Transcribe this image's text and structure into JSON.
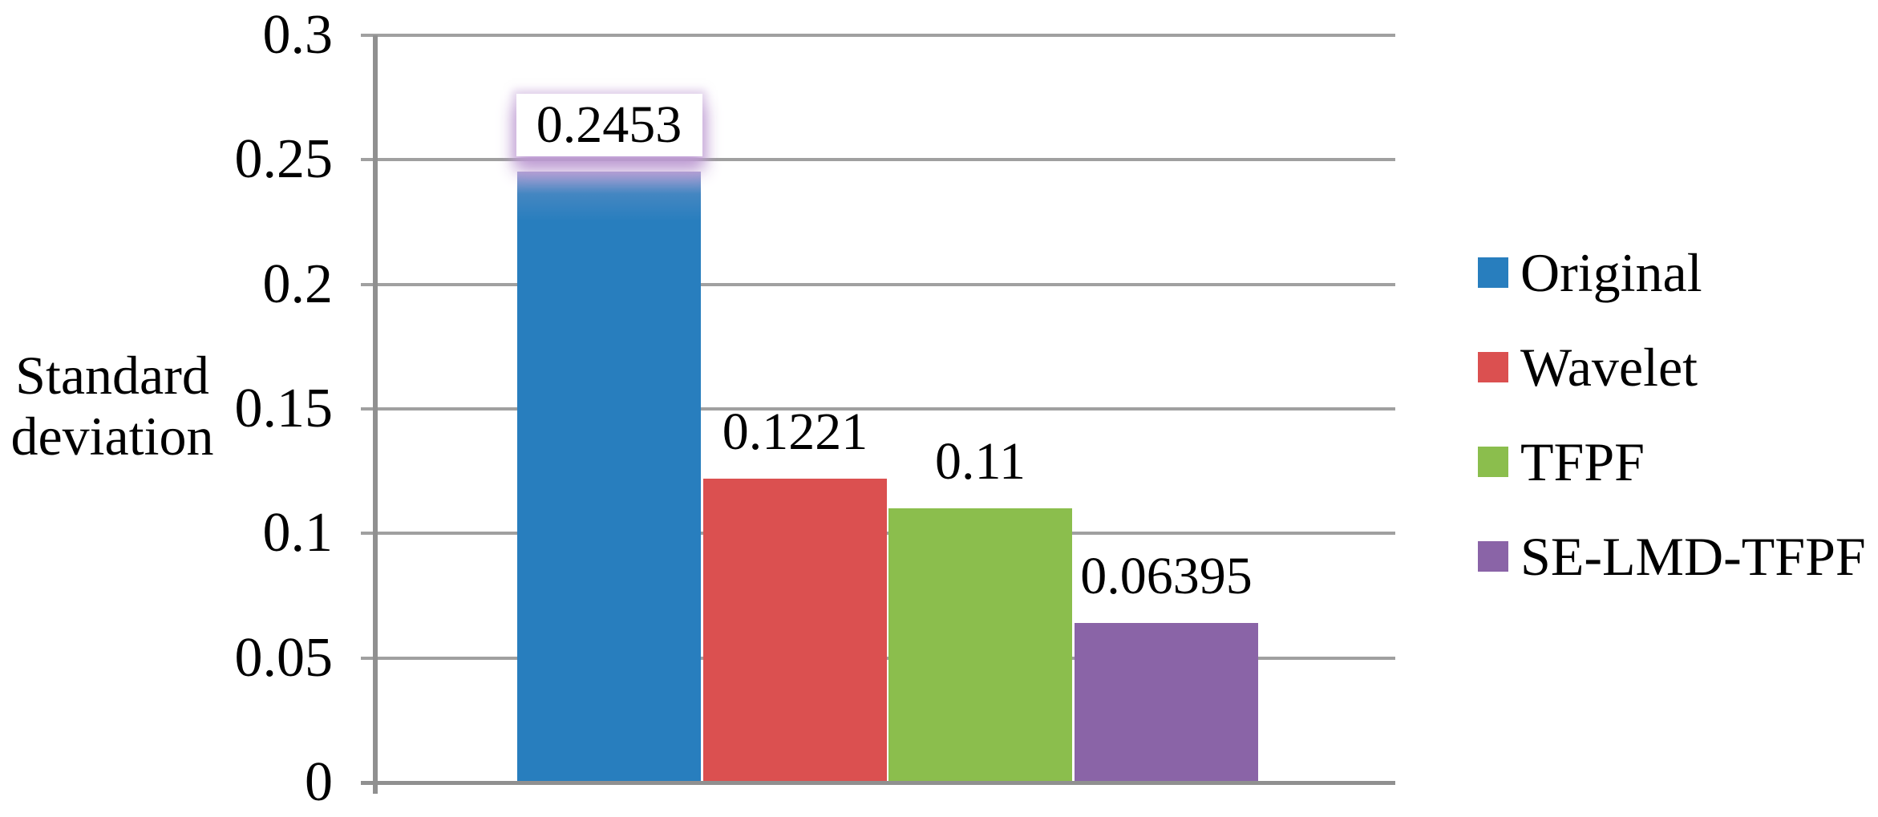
{
  "chart_data": {
    "type": "bar",
    "title": "",
    "xlabel": "",
    "ylabel": "Standard deviation",
    "ylabel_lines": [
      "Standard",
      "deviation"
    ],
    "categories": [
      "Original",
      "Wavelet",
      "TFPF",
      "SE-LMD-TFPF"
    ],
    "values": [
      0.2453,
      0.1221,
      0.11,
      0.06395
    ],
    "data_labels": [
      "0.2453",
      "0.1221",
      "0.11",
      "0.06395"
    ],
    "bar_colors": [
      "#287EBE",
      "#DB5050",
      "#8BBE4D",
      "#8A64A7"
    ],
    "ylim": [
      0,
      0.3
    ],
    "ytick_step": 0.05,
    "ytick_labels": [
      "0.3",
      "0.25",
      "0.2",
      "0.15",
      "0.1",
      "0.05",
      "0"
    ],
    "grid": true,
    "grid_color": "#A0A0A0",
    "axis_color": "#909090",
    "legend_position": "right",
    "legend": [
      {
        "label": "Original",
        "color": "#287EBE"
      },
      {
        "label": "Wavelet",
        "color": "#DB5050"
      },
      {
        "label": "TFPF",
        "color": "#8BBE4D"
      },
      {
        "label": "SE-LMD-TFPF",
        "color": "#8A64A7"
      }
    ],
    "first_label_highlight": {
      "background": "#FFFFFF",
      "glow_color": "#C8A8D8"
    }
  }
}
